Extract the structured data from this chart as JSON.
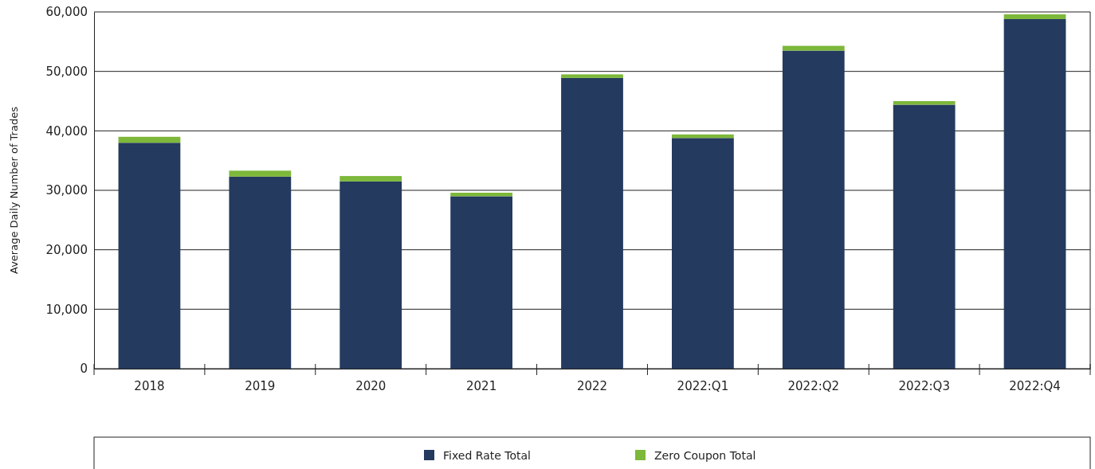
{
  "chart_data": {
    "type": "bar",
    "stacked": true,
    "ylabel": "Average Daily Number of Trades",
    "categories": [
      "2018",
      "2019",
      "2020",
      "2021",
      "2022",
      "2022:Q1",
      "2022:Q2",
      "2022:Q3",
      "2022:Q4"
    ],
    "series": [
      {
        "name": "Fixed Rate Total",
        "color": "#243a5e",
        "values": [
          38000,
          32300,
          31500,
          29000,
          48900,
          38800,
          53500,
          44400,
          58800
        ]
      },
      {
        "name": "Zero Coupon Total",
        "color": "#7db83a",
        "values": [
          1000,
          1000,
          900,
          600,
          600,
          600,
          800,
          600,
          800
        ]
      }
    ],
    "ylim": [
      0,
      60000
    ],
    "yticks": [
      {
        "value": 0,
        "label": "0"
      },
      {
        "value": 10000,
        "label": "10,000"
      },
      {
        "value": 20000,
        "label": "20,000"
      },
      {
        "value": 30000,
        "label": "30,000"
      },
      {
        "value": 40000,
        "label": "40,000"
      },
      {
        "value": 50000,
        "label": "50,000"
      },
      {
        "value": 60000,
        "label": "60,000"
      }
    ],
    "grid": "y",
    "legend": "bottom"
  }
}
